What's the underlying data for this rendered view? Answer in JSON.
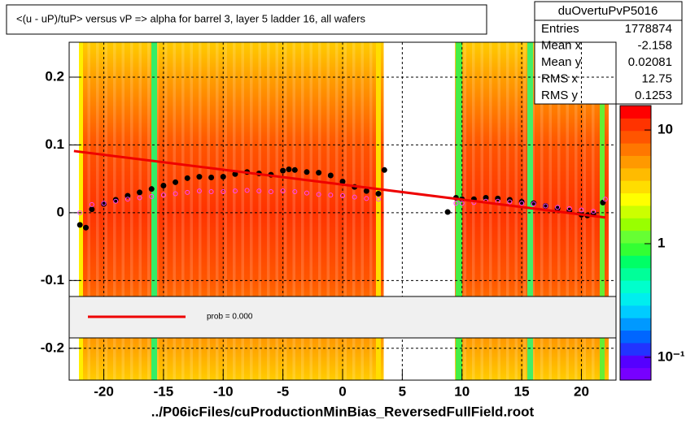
{
  "chart_data": {
    "type": "scatter",
    "title": "<(u - uP)/tuP> versus   vP => alpha for barrel 3, layer 5 ladder 16, all wafers",
    "x_label": "../P06icFiles/cuProductionMinBias_ReversedFullField.root",
    "xlim": [
      -22.9,
      22.9
    ],
    "ylim": [
      -0.247,
      0.2515
    ],
    "xticks": [
      -20,
      -15,
      -10,
      -5,
      0,
      5,
      10,
      15,
      20
    ],
    "yticks": [
      -0.2,
      -0.1,
      0,
      0.1,
      0.2
    ],
    "grid": true,
    "zlim": [
      0.063,
      16.4
    ],
    "zscale": "log",
    "zticks": [
      10,
      1,
      {
        "value": 0.1,
        "label": "10⁻¹"
      }
    ],
    "stats": {
      "name": "duOvertuPvP5016",
      "rows": [
        {
          "label": "Entries",
          "value": 1778874
        },
        {
          "label": "Mean x",
          "value": -2.158
        },
        {
          "label": "Mean y",
          "value": 0.02081
        },
        {
          "label": "RMS x",
          "value": 12.75
        },
        {
          "label": "RMS y",
          "value": 0.1253
        }
      ]
    },
    "legend_text": "prob = 0.000",
    "series": [
      {
        "kind": "points",
        "color": "#000000",
        "x": [
          -22,
          -21.5,
          -21,
          -20,
          -19,
          -18,
          -17,
          -16,
          -15,
          -14,
          -13,
          -12,
          -11,
          -10,
          -9,
          -8,
          -7,
          -6,
          -5,
          -4.5,
          -4,
          -3,
          -2,
          -1,
          0,
          1,
          2,
          3,
          3.5,
          8.8,
          9.5,
          10,
          11,
          12,
          13,
          14,
          15,
          16,
          17,
          18,
          19,
          20,
          20.5,
          21,
          21.8
        ],
        "values": [
          -0.018,
          -0.022,
          0.005,
          0.013,
          0.019,
          0.025,
          0.03,
          0.035,
          0.04,
          0.045,
          0.051,
          0.053,
          0.052,
          0.053,
          0.057,
          0.06,
          0.058,
          0.056,
          0.062,
          0.064,
          0.063,
          0.06,
          0.059,
          0.055,
          0.046,
          0.038,
          0.032,
          0.028,
          0.063,
          0.001,
          0.022,
          0.02,
          0.02,
          0.022,
          0.021,
          0.019,
          0.016,
          0.014,
          0.01,
          0.006,
          0.003,
          -0.003,
          -0.004,
          -0.002,
          0.015
        ]
      },
      {
        "kind": "points",
        "color": "#ff44ff",
        "x": [
          -22,
          -21,
          -20,
          -19,
          -18,
          -17,
          -16,
          -15,
          -14,
          -13,
          -12,
          -11,
          -10,
          -9,
          -8,
          -7,
          -6,
          -5,
          -4,
          -3,
          -2,
          -1,
          0,
          1,
          2,
          3,
          9.5,
          10,
          11,
          12,
          13,
          14,
          15,
          16,
          17,
          18,
          19,
          20,
          21,
          22
        ],
        "values": [
          0,
          0.012,
          0.014,
          0.017,
          0.02,
          0.022,
          0.024,
          0.026,
          0.028,
          0.03,
          0.032,
          0.031,
          0.031,
          0.032,
          0.033,
          0.032,
          0.031,
          0.032,
          0.031,
          0.029,
          0.027,
          0.026,
          0.025,
          0.023,
          0.021,
          0.02,
          0.014,
          0.014,
          0.015,
          0.017,
          0.017,
          0.016,
          0.014,
          0.013,
          0.01,
          0.008,
          0.006,
          0.004,
          0.002,
          0.02
        ]
      },
      {
        "kind": "line",
        "color": "#ee0000",
        "x": [
          -22.5,
          22
        ],
        "values": [
          0.091,
          -0.007
        ]
      }
    ]
  }
}
